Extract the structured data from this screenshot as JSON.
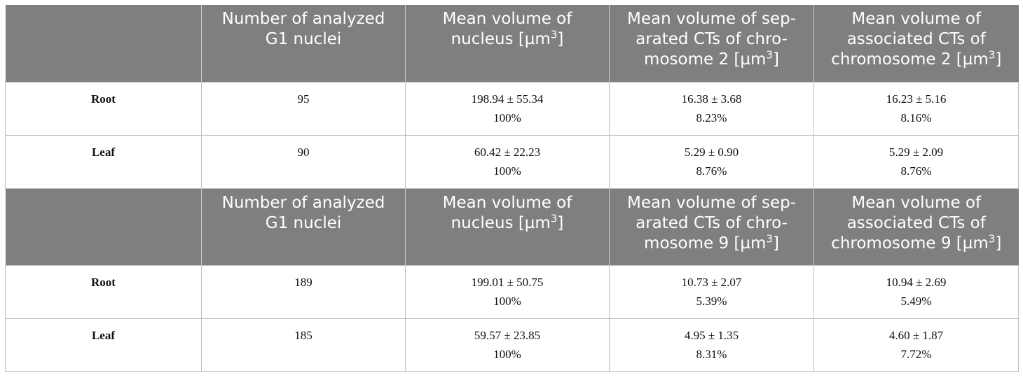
{
  "sections": [
    {
      "headers": [
        "",
        "Number of analyzed G1 nuclei",
        "Mean volume of nucleus [µm",
        "Mean volume of sep-arated CTs of chro-mosome 2 [µm",
        "Mean volume of associated CTs of chromosome 2 [µm"
      ],
      "header_sup": "3",
      "header_close": "]",
      "rows": [
        {
          "label": "Root",
          "analyzed": "95",
          "nucleus": "198.94 ± 55.34",
          "nucleus_pct": "100%",
          "separated": "16.38 ± 3.68",
          "separated_pct": "8.23%",
          "associated": "16.23 ± 5.16",
          "associated_pct": "8.16%"
        },
        {
          "label": "Leaf",
          "analyzed": "90",
          "nucleus": "60.42 ± 22.23",
          "nucleus_pct": "100%",
          "separated": "5.29 ± 0.90",
          "separated_pct": "8.76%",
          "associated": "5.29 ± 2.09",
          "associated_pct": "8.76%"
        }
      ]
    },
    {
      "headers": [
        "",
        "Number of analyzed G1 nuclei",
        "Mean volume of nucleus [µm",
        "Mean volume of sep-arated CTs of chro-mosome 9 [µm",
        "Mean volume of associated CTs of chromosome 9 [µm"
      ],
      "header_sup": "3",
      "header_close": "]",
      "rows": [
        {
          "label": "Root",
          "analyzed": "189",
          "nucleus": "199.01 ± 50.75",
          "nucleus_pct": "100%",
          "separated": "10.73 ± 2.07",
          "separated_pct": "5.39%",
          "associated": "10.94 ± 2.69",
          "associated_pct": "5.49%"
        },
        {
          "label": "Leaf",
          "analyzed": "185",
          "nucleus": "59.57 ± 23.85",
          "nucleus_pct": "100%",
          "separated": "4.95 ± 1.35",
          "separated_pct": "8.31%",
          "associated": "4.60 ± 1.87",
          "associated_pct": "7.72%"
        }
      ]
    }
  ]
}
